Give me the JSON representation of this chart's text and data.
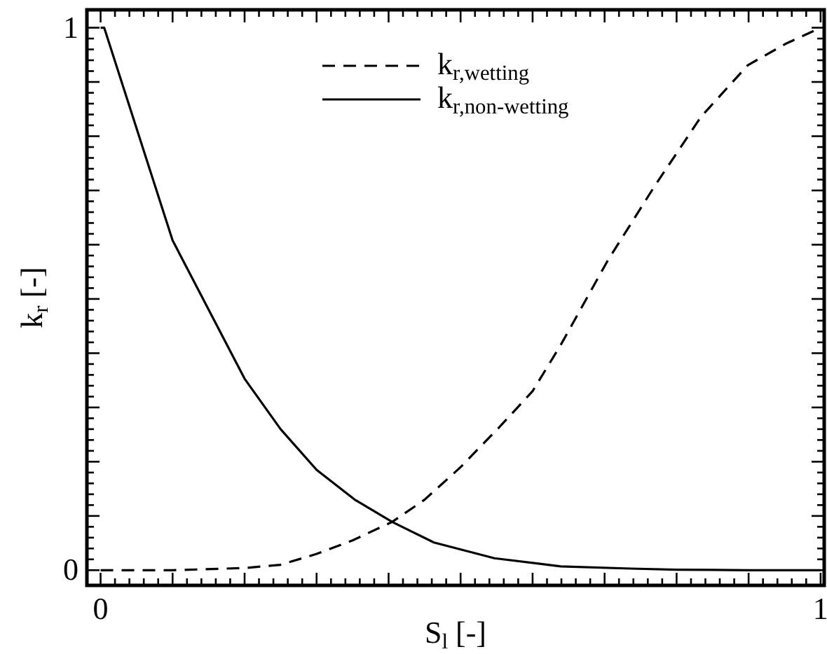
{
  "chart_data": {
    "type": "line",
    "xlabel": "S$_{l}$ [-]",
    "ylabel": "k$_{r}$ [-]",
    "xlim": [
      -0.019,
      1.005
    ],
    "ylim": [
      -0.028,
      1.033
    ],
    "xticks": [
      0,
      {
        "value": 0.02,
        "label": null
      },
      {
        "value": 0.04,
        "label": null
      },
      {
        "value": 0.06,
        "label": null
      },
      {
        "value": 0.08,
        "label": null
      },
      {
        "value": 0.1,
        "label": null
      },
      {
        "value": 0.12,
        "label": null
      },
      {
        "value": 0.14,
        "label": null
      },
      {
        "value": 0.16,
        "label": null
      },
      {
        "value": 0.18,
        "label": null
      },
      {
        "value": 0.2,
        "label": null
      },
      {
        "value": 0.22,
        "label": null
      },
      {
        "value": 0.24,
        "label": null
      },
      {
        "value": 0.26,
        "label": null
      },
      {
        "value": 0.28,
        "label": null
      },
      {
        "value": 0.3,
        "label": null
      },
      {
        "value": 0.32,
        "label": null
      },
      {
        "value": 0.34,
        "label": null
      },
      {
        "value": 0.36,
        "label": null
      },
      {
        "value": 0.38,
        "label": null
      },
      {
        "value": 0.4,
        "label": null
      },
      {
        "value": 0.42,
        "label": null
      },
      {
        "value": 0.44,
        "label": null
      },
      {
        "value": 0.46,
        "label": null
      },
      {
        "value": 0.48,
        "label": null
      },
      {
        "value": 0.5,
        "label": null
      },
      {
        "value": 0.52,
        "label": null
      },
      {
        "value": 0.54,
        "label": null
      },
      {
        "value": 0.56,
        "label": null
      },
      {
        "value": 0.58,
        "label": null
      },
      {
        "value": 0.6,
        "label": null
      },
      {
        "value": 0.62,
        "label": null
      },
      {
        "value": 0.64,
        "label": null
      },
      {
        "value": 0.66,
        "label": null
      },
      {
        "value": 0.68,
        "label": null
      },
      {
        "value": 0.7,
        "label": null
      },
      {
        "value": 0.72,
        "label": null
      },
      {
        "value": 0.74,
        "label": null
      },
      {
        "value": 0.76,
        "label": null
      },
      {
        "value": 0.78,
        "label": null
      },
      {
        "value": 0.8,
        "label": null
      },
      {
        "value": 0.82,
        "label": null
      },
      {
        "value": 0.84,
        "label": null
      },
      {
        "value": 0.86,
        "label": null
      },
      {
        "value": 0.88,
        "label": null
      },
      {
        "value": 0.9,
        "label": null
      },
      {
        "value": 0.92,
        "label": null
      },
      {
        "value": 0.94,
        "label": null
      },
      {
        "value": 0.96,
        "label": null
      },
      {
        "value": 0.98,
        "label": null
      },
      1
    ],
    "yticks": [
      0,
      {
        "value": 0.02,
        "label": null
      },
      {
        "value": 0.04,
        "label": null
      },
      {
        "value": 0.06,
        "label": null
      },
      {
        "value": 0.08,
        "label": null
      },
      {
        "value": 0.1,
        "label": null
      },
      {
        "value": 0.12,
        "label": null
      },
      {
        "value": 0.14,
        "label": null
      },
      {
        "value": 0.16,
        "label": null
      },
      {
        "value": 0.18,
        "label": null
      },
      {
        "value": 0.2,
        "label": null
      },
      {
        "value": 0.22,
        "label": null
      },
      {
        "value": 0.24,
        "label": null
      },
      {
        "value": 0.26,
        "label": null
      },
      {
        "value": 0.28,
        "label": null
      },
      {
        "value": 0.3,
        "label": null
      },
      {
        "value": 0.32,
        "label": null
      },
      {
        "value": 0.34,
        "label": null
      },
      {
        "value": 0.36,
        "label": null
      },
      {
        "value": 0.38,
        "label": null
      },
      {
        "value": 0.4,
        "label": null
      },
      {
        "value": 0.42,
        "label": null
      },
      {
        "value": 0.44,
        "label": null
      },
      {
        "value": 0.46,
        "label": null
      },
      {
        "value": 0.48,
        "label": null
      },
      {
        "value": 0.5,
        "label": null
      },
      {
        "value": 0.52,
        "label": null
      },
      {
        "value": 0.54,
        "label": null
      },
      {
        "value": 0.56,
        "label": null
      },
      {
        "value": 0.58,
        "label": null
      },
      {
        "value": 0.6,
        "label": null
      },
      {
        "value": 0.62,
        "label": null
      },
      {
        "value": 0.64,
        "label": null
      },
      {
        "value": 0.66,
        "label": null
      },
      {
        "value": 0.68,
        "label": null
      },
      {
        "value": 0.7,
        "label": null
      },
      {
        "value": 0.72,
        "label": null
      },
      {
        "value": 0.74,
        "label": null
      },
      {
        "value": 0.76,
        "label": null
      },
      {
        "value": 0.78,
        "label": null
      },
      {
        "value": 0.8,
        "label": null
      },
      {
        "value": 0.82,
        "label": null
      },
      {
        "value": 0.84,
        "label": null
      },
      {
        "value": 0.86,
        "label": null
      },
      {
        "value": 0.88,
        "label": null
      },
      {
        "value": 0.9,
        "label": null
      },
      {
        "value": 0.92,
        "label": null
      },
      {
        "value": 0.94,
        "label": null
      },
      {
        "value": 0.96,
        "label": null
      },
      {
        "value": 0.98,
        "label": null
      },
      1
    ],
    "grid": false,
    "legend": "top",
    "marker": "none",
    "series": [
      {
        "name": "k$_{r,wetting}$",
        "color": "#000000",
        "line_style": "dashed",
        "x": [
          0,
          0.1,
          0.2,
          0.25,
          0.3,
          0.35,
          0.405,
          0.45,
          0.5,
          0.554,
          0.6,
          0.639,
          0.704,
          0.769,
          0.834,
          0.899,
          0.951,
          1
        ],
        "values": [
          0,
          0,
          0.004,
          0.01,
          0.03,
          0.055,
          0.089,
          0.13,
          0.19,
          0.264,
          0.33,
          0.415,
          0.57,
          0.707,
          0.836,
          0.931,
          0.97,
          1
        ]
      },
      {
        "name": "k$_{r,non-wetting}$",
        "color": "#000000",
        "line_style": "solid",
        "x": [
          0,
          0.005,
          0.1,
          0.2,
          0.25,
          0.3,
          0.353,
          0.405,
          0.463,
          0.547,
          0.639,
          0.736,
          0.8,
          0.9,
          1
        ],
        "values": [
          1,
          1,
          0.608,
          0.353,
          0.26,
          0.185,
          0.13,
          0.089,
          0.051,
          0.022,
          0.007,
          0.003,
          0.001,
          0,
          0
        ]
      }
    ]
  }
}
